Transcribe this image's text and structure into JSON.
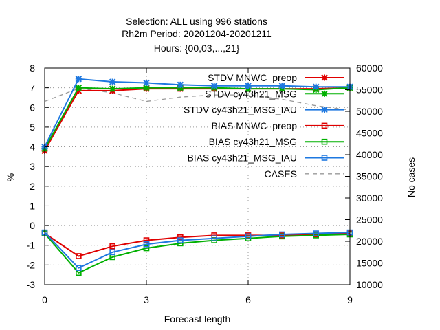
{
  "chart_data": {
    "type": "line",
    "title_lines": [
      "Selection: ALL using   996 stations",
      "Rh2m   Period: 20201204-20201211",
      "Hours: {00,03,...,21}"
    ],
    "xlabel": "Forecast length",
    "ylabel": "%",
    "y2label": "No cases",
    "xlim": [
      0,
      9
    ],
    "ylim": [
      -3,
      8
    ],
    "y2lim": [
      10000,
      60000
    ],
    "xticks": [
      0,
      3,
      6,
      9
    ],
    "yticks": [
      -3,
      -2,
      -1,
      0,
      1,
      2,
      3,
      4,
      5,
      6,
      7,
      8
    ],
    "y2ticks": [
      10000,
      15000,
      20000,
      25000,
      30000,
      35000,
      40000,
      45000,
      50000,
      55000,
      60000
    ],
    "grid": true,
    "legend_position": "top-right",
    "x": [
      0,
      1,
      2,
      3,
      4,
      5,
      6,
      7,
      8,
      9
    ],
    "series": [
      {
        "name": "STDV MNWC_preop",
        "color": "#e00000",
        "marker": "x",
        "axis": "y1",
        "values": [
          3.8,
          6.85,
          6.85,
          6.95,
          6.95,
          6.95,
          6.95,
          6.95,
          6.95,
          7.0
        ]
      },
      {
        "name": "STDV cy43h21_MSG",
        "color": "#00b000",
        "marker": "x",
        "axis": "y1",
        "values": [
          3.9,
          7.0,
          6.95,
          7.0,
          7.0,
          7.0,
          6.95,
          6.95,
          6.9,
          7.0
        ]
      },
      {
        "name": "STDV cy43h21_MSG_IAU",
        "color": "#1e78e0",
        "marker": "x",
        "axis": "y1",
        "values": [
          4.0,
          7.45,
          7.3,
          7.25,
          7.15,
          7.1,
          7.1,
          7.1,
          7.05,
          7.05
        ]
      },
      {
        "name": "BIAS MNWC_preop",
        "color": "#e00000",
        "marker": "square",
        "axis": "y1",
        "values": [
          -0.4,
          -1.55,
          -1.05,
          -0.75,
          -0.6,
          -0.5,
          -0.5,
          -0.5,
          -0.45,
          -0.4
        ]
      },
      {
        "name": "BIAS cy43h21_MSG",
        "color": "#00b000",
        "marker": "square",
        "axis": "y1",
        "values": [
          -0.4,
          -2.4,
          -1.6,
          -1.15,
          -0.9,
          -0.75,
          -0.65,
          -0.55,
          -0.5,
          -0.45
        ]
      },
      {
        "name": "BIAS cy43h21_MSG_IAU",
        "color": "#1e78e0",
        "marker": "square",
        "axis": "y1",
        "values": [
          -0.35,
          -2.15,
          -1.35,
          -0.95,
          -0.75,
          -0.65,
          -0.55,
          -0.45,
          -0.4,
          -0.35
        ]
      },
      {
        "name": "CASES",
        "color": "#999999",
        "marker": "none",
        "dash": true,
        "axis": "y2",
        "values": [
          52300,
          55300,
          54300,
          52300,
          53300,
          53800,
          53800,
          52800,
          51300,
          50300
        ]
      }
    ]
  }
}
